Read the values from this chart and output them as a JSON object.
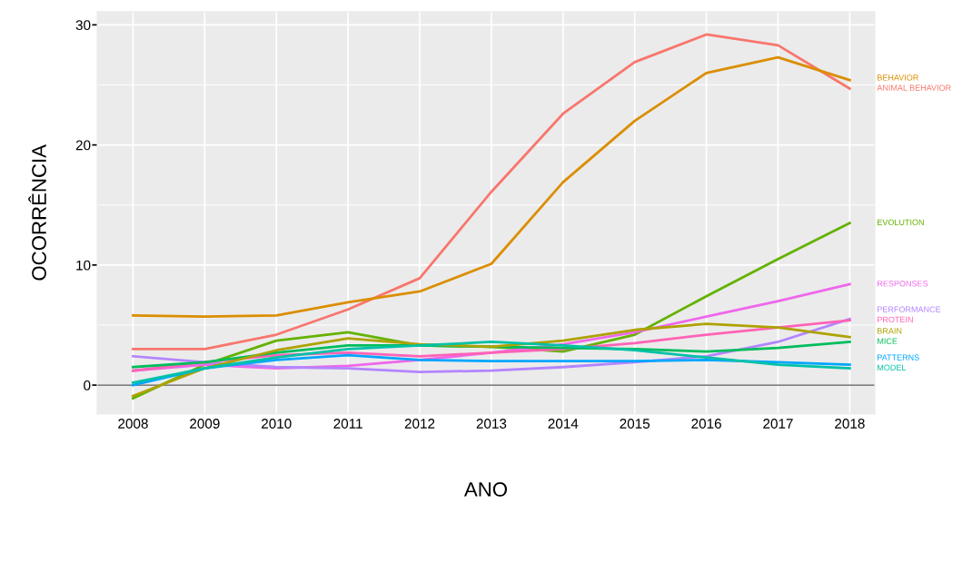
{
  "chart_data": {
    "type": "line",
    "xlabel": "ANO",
    "ylabel": "OCORRÊNCIA",
    "x": [
      2008,
      2009,
      2010,
      2011,
      2012,
      2013,
      2014,
      2015,
      2016,
      2017,
      2018
    ],
    "xlim": [
      2007.5,
      2018.35
    ],
    "xticks": [
      2008,
      2009,
      2010,
      2011,
      2012,
      2013,
      2014,
      2015,
      2016,
      2017,
      2018
    ],
    "ylim": [
      -2.4,
      31.1
    ],
    "yticks": [
      0,
      10,
      20,
      30
    ],
    "grid": true,
    "legend": false,
    "line_style": "solid",
    "ref_lines": [
      {
        "axis": "y",
        "value": 0,
        "color": "#555555"
      }
    ],
    "series": [
      {
        "name": "ANIMAL BEHAVIOR",
        "color": "#f8766d",
        "values": [
          3.0,
          3.0,
          4.2,
          6.3,
          8.9,
          16.1,
          22.6,
          26.9,
          29.2,
          28.3,
          24.7
        ]
      },
      {
        "name": "BEHAVIOR",
        "color": "#db8e00",
        "values": [
          5.8,
          5.7,
          5.8,
          6.9,
          7.8,
          10.1,
          16.9,
          22.0,
          26.0,
          27.3,
          25.4
        ]
      },
      {
        "name": "EVOLUTION",
        "color": "#64b200",
        "values": [
          -1.1,
          1.7,
          3.7,
          4.4,
          3.3,
          3.2,
          2.8,
          4.2,
          7.4,
          10.5,
          13.5
        ]
      },
      {
        "name": "RESPONSES",
        "color": "#ef67eb",
        "values": [
          1.2,
          1.7,
          1.4,
          1.6,
          2.1,
          2.7,
          3.4,
          4.4,
          5.7,
          7.0,
          8.4
        ]
      },
      {
        "name": "PERFORMANCE",
        "color": "#b385ff",
        "values": [
          2.4,
          1.9,
          1.5,
          1.4,
          1.1,
          1.2,
          1.5,
          1.9,
          2.4,
          3.6,
          5.5
        ]
      },
      {
        "name": "PROTEIN",
        "color": "#ff63b6",
        "values": [
          1.2,
          1.9,
          2.5,
          2.7,
          2.4,
          2.7,
          3.0,
          3.5,
          4.2,
          4.8,
          5.4
        ]
      },
      {
        "name": "MICE",
        "color": "#00bd5c",
        "values": [
          1.5,
          1.9,
          2.7,
          3.3,
          3.3,
          3.2,
          3.1,
          3.0,
          2.8,
          3.1,
          3.6
        ]
      },
      {
        "name": "BRAIN",
        "color": "#aea200",
        "values": [
          -0.9,
          1.4,
          2.9,
          3.9,
          3.4,
          3.2,
          3.7,
          4.6,
          5.1,
          4.8,
          4.0
        ]
      },
      {
        "name": "PATTERNS",
        "color": "#00a6ff",
        "values": [
          0.0,
          1.4,
          2.1,
          2.5,
          2.1,
          2.0,
          2.0,
          2.0,
          2.1,
          1.9,
          1.7
        ]
      },
      {
        "name": "MODEL",
        "color": "#00c1a7",
        "values": [
          0.2,
          1.4,
          2.3,
          3.0,
          3.3,
          3.6,
          3.3,
          2.9,
          2.3,
          1.7,
          1.4
        ]
      }
    ]
  }
}
